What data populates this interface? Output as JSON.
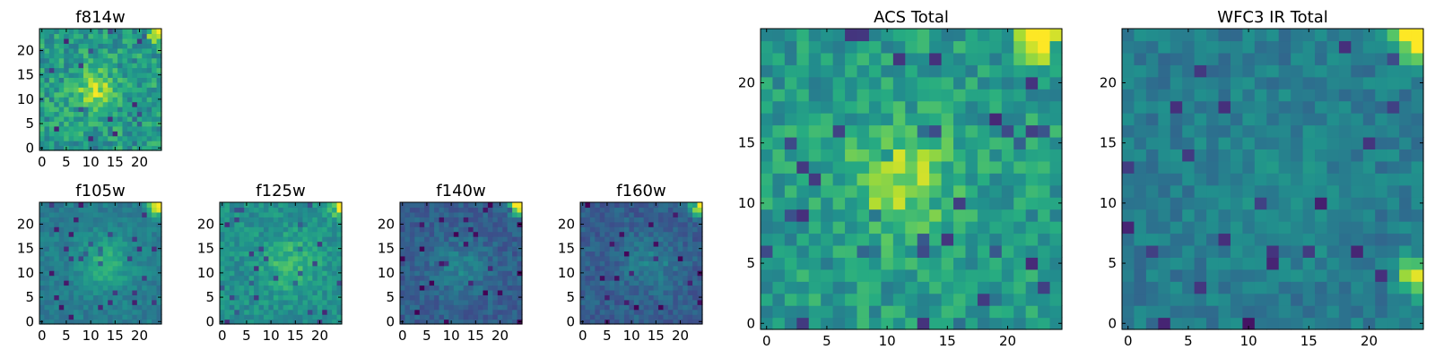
{
  "chart_data": [
    {
      "type": "heatmap",
      "title": "f814w",
      "grid_size": 25,
      "xlim": [
        0,
        24
      ],
      "ylim": [
        0,
        24
      ],
      "x_ticks": [
        0,
        5,
        10,
        15,
        20
      ],
      "y_ticks": [
        0,
        5,
        10,
        15,
        20
      ],
      "colormap": "viridis",
      "features": {
        "background": 0.55,
        "noise": 0.16,
        "peak_center": [
          11,
          12
        ],
        "peak_sigma": 2.8,
        "peak_amp": 0.32,
        "corner_hotspot": [
          24,
          24
        ],
        "corner_amp": 0.6,
        "seed": 11
      }
    },
    {
      "type": "heatmap",
      "title": "f105w",
      "grid_size": 25,
      "xlim": [
        0,
        24
      ],
      "ylim": [
        0,
        24
      ],
      "x_ticks": [
        0,
        5,
        10,
        15,
        20
      ],
      "y_ticks": [
        0,
        5,
        10,
        15,
        20
      ],
      "colormap": "viridis",
      "features": {
        "background": 0.42,
        "noise": 0.07,
        "peak_center": [
          13,
          12
        ],
        "peak_sigma": 4,
        "peak_amp": 0.22,
        "corner_hotspot": [
          24,
          24
        ],
        "corner_amp": 0.7,
        "seed": 23
      }
    },
    {
      "type": "heatmap",
      "title": "f125w",
      "grid_size": 25,
      "xlim": [
        0,
        24
      ],
      "ylim": [
        0,
        24
      ],
      "x_ticks": [
        0,
        5,
        10,
        15,
        20
      ],
      "y_ticks": [
        0,
        5,
        10,
        15,
        20
      ],
      "colormap": "viridis",
      "features": {
        "background": 0.5,
        "noise": 0.1,
        "peak_center": [
          14,
          12
        ],
        "peak_sigma": 4,
        "peak_amp": 0.18,
        "corner_hotspot": [
          24,
          24
        ],
        "corner_amp": 0.6,
        "seed": 37
      }
    },
    {
      "type": "heatmap",
      "title": "f140w",
      "grid_size": 25,
      "xlim": [
        0,
        24
      ],
      "ylim": [
        0,
        24
      ],
      "x_ticks": [
        0,
        5,
        10,
        15,
        20
      ],
      "y_ticks": [
        0,
        5,
        10,
        15,
        20
      ],
      "colormap": "viridis",
      "features": {
        "background": 0.3,
        "noise": 0.08,
        "peak_center": [
          12,
          11
        ],
        "peak_sigma": 4,
        "peak_amp": 0.14,
        "corner_hotspot": [
          24,
          24
        ],
        "corner_amp": 0.8,
        "seed": 41
      }
    },
    {
      "type": "heatmap",
      "title": "f160w",
      "grid_size": 25,
      "xlim": [
        0,
        24
      ],
      "ylim": [
        0,
        24
      ],
      "x_ticks": [
        0,
        5,
        10,
        15,
        20
      ],
      "y_ticks": [
        0,
        5,
        10,
        15,
        20
      ],
      "colormap": "viridis",
      "features": {
        "background": 0.3,
        "noise": 0.08,
        "peak_center": [
          14,
          12
        ],
        "peak_sigma": 4,
        "peak_amp": 0.14,
        "corner_hotspot": [
          24,
          24
        ],
        "corner_amp": 0.8,
        "seed": 53
      }
    },
    {
      "type": "heatmap",
      "title": "ACS Total",
      "grid_size": 25,
      "xlim": [
        0,
        24
      ],
      "ylim": [
        0,
        24
      ],
      "x_ticks": [
        0,
        5,
        10,
        15,
        20
      ],
      "y_ticks": [
        0,
        5,
        10,
        15,
        20
      ],
      "colormap": "viridis",
      "features": {
        "background": 0.55,
        "noise": 0.14,
        "peak_center": [
          11,
          12
        ],
        "peak_sigma": 3,
        "peak_amp": 0.32,
        "corner_hotspot": [
          23,
          24
        ],
        "corner_amp": 0.6,
        "seed": 67
      }
    },
    {
      "type": "heatmap",
      "title": "WFC3 IR Total",
      "grid_size": 25,
      "xlim": [
        0,
        24
      ],
      "ylim": [
        0,
        24
      ],
      "x_ticks": [
        0,
        5,
        10,
        15,
        20
      ],
      "y_ticks": [
        0,
        5,
        10,
        15,
        20
      ],
      "colormap": "viridis",
      "features": {
        "background": 0.42,
        "noise": 0.09,
        "peak_center": [
          12,
          12
        ],
        "peak_sigma": 4,
        "peak_amp": 0.06,
        "corner_hotspot": [
          24,
          24
        ],
        "corner_amp": 0.7,
        "second_hotspot": [
          24,
          4
        ],
        "second_amp": 0.6,
        "seed": 79
      }
    }
  ]
}
